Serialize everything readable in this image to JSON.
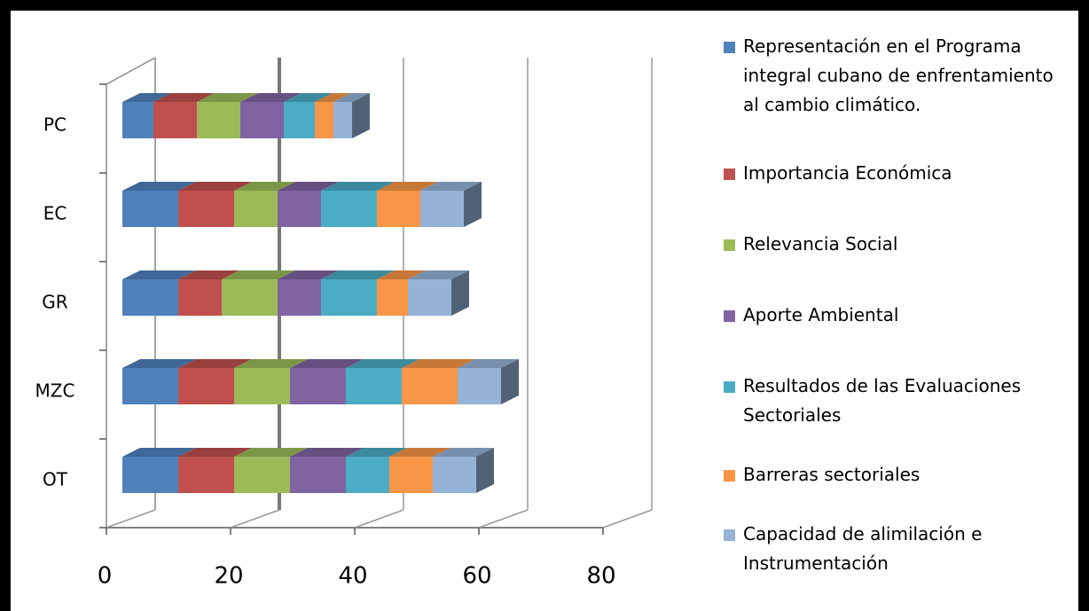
{
  "chart_data": {
    "type": "bar3d_stacked_horizontal",
    "categories": [
      "PC",
      "EC",
      "GR",
      "MZC",
      "OT"
    ],
    "series": [
      {
        "name": "Representación en el Programa integral cubano de enfrentamiento al cambio climático.",
        "color": "#4f81bd",
        "values": [
          5,
          9,
          9,
          9,
          9
        ]
      },
      {
        "name": " Importancia Económica",
        "color": "#c0504d",
        "values": [
          7,
          9,
          7,
          9,
          9
        ]
      },
      {
        "name": "Relevancia Social",
        "color": "#9bbb59",
        "values": [
          7,
          7,
          9,
          9,
          9
        ]
      },
      {
        "name": "Aporte Ambiental",
        "color": "#8064a2",
        "values": [
          7,
          7,
          7,
          9,
          9
        ]
      },
      {
        "name": "Resultados de las  Evaluaciones Sectoriales",
        "color": "#4bacc6",
        "values": [
          5,
          9,
          9,
          9,
          7
        ]
      },
      {
        "name": "Barreras sectoriales",
        "color": "#f79646",
        "values": [
          3,
          7,
          5,
          9,
          7
        ]
      },
      {
        "name": "Capacidad de alimilación e Instrumentación",
        "color": "#95b3d7",
        "values": [
          3,
          7,
          7,
          7,
          7
        ]
      }
    ],
    "xlim": [
      0,
      80
    ],
    "xticks": [
      0,
      20,
      40,
      60,
      80
    ],
    "grid": true,
    "legend": "right"
  }
}
